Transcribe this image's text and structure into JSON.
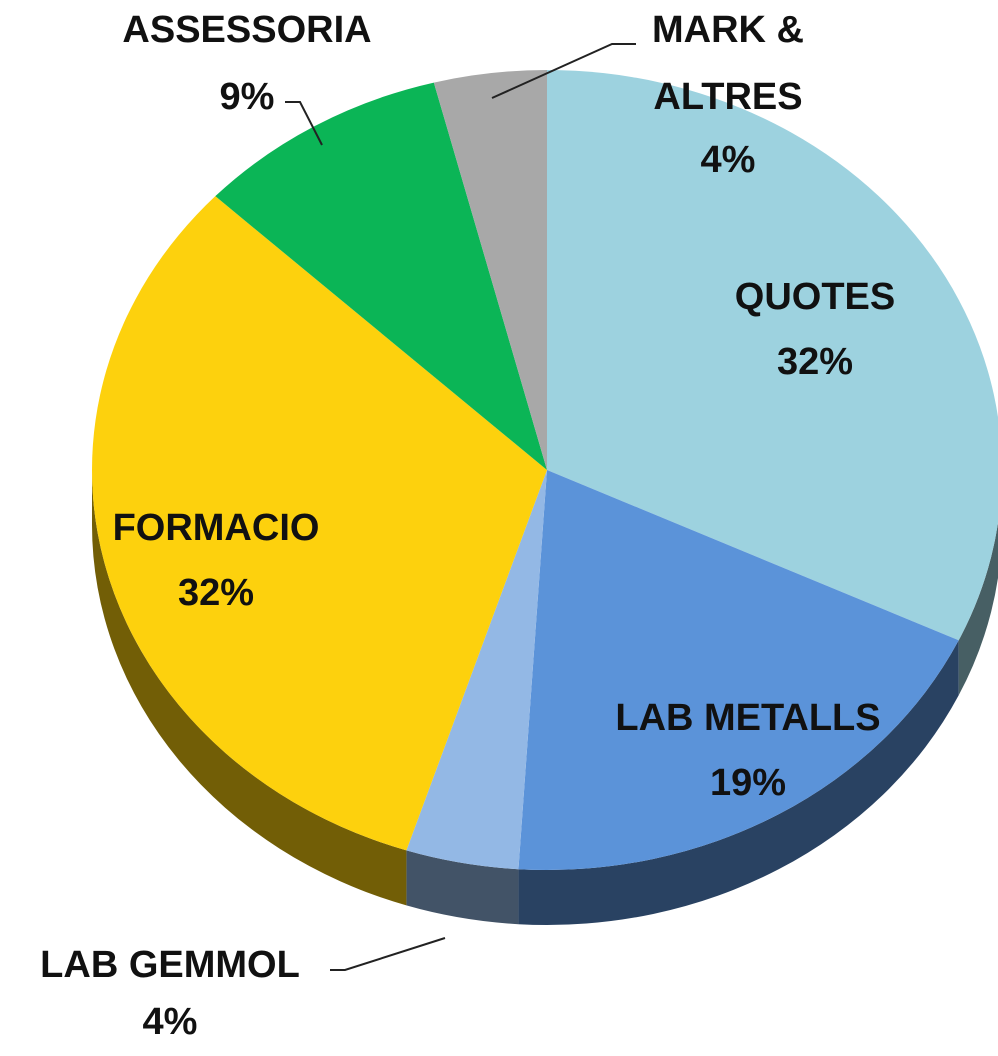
{
  "chart_data": {
    "type": "pie",
    "categories": [
      "QUOTES",
      "LAB METALLS",
      "LAB GEMMOL",
      "FORMACIO",
      "ASSESSORIA",
      "MARK & ALTRES"
    ],
    "values": [
      32,
      19,
      4,
      32,
      9,
      4
    ],
    "value_labels": [
      "32%",
      "19%",
      "4%",
      "32%",
      "9%",
      "4%"
    ],
    "colors": [
      "#9dd2df",
      "#5b93d9",
      "#93b8e5",
      "#fdd10d",
      "#0bb556",
      "#a8a8a8"
    ]
  }
}
